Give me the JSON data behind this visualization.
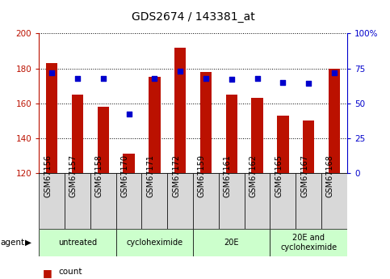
{
  "title": "GDS2674 / 143381_at",
  "samples": [
    "GSM67156",
    "GSM67157",
    "GSM67158",
    "GSM67170",
    "GSM67171",
    "GSM67172",
    "GSM67159",
    "GSM67161",
    "GSM67162",
    "GSM67165",
    "GSM67167",
    "GSM67168"
  ],
  "bar_values": [
    183,
    165,
    158,
    131,
    175,
    192,
    178,
    165,
    163,
    153,
    150,
    180
  ],
  "dot_values": [
    72,
    68,
    68,
    42,
    68,
    73,
    68,
    67,
    68,
    65,
    64,
    72
  ],
  "ylim": [
    120,
    200
  ],
  "y2lim": [
    0,
    100
  ],
  "yticks": [
    120,
    140,
    160,
    180,
    200
  ],
  "y2ticks": [
    0,
    25,
    50,
    75,
    100
  ],
  "bar_color": "#bb1100",
  "dot_color": "#0000cc",
  "bar_bottom": 120,
  "groups": [
    {
      "label": "untreated",
      "start": 0,
      "end": 3
    },
    {
      "label": "cycloheximide",
      "start": 3,
      "end": 6
    },
    {
      "label": "20E",
      "start": 6,
      "end": 9
    },
    {
      "label": "20E and\ncycloheximide",
      "start": 9,
      "end": 12
    }
  ],
  "group_color": "#ccffcc",
  "sample_bg_color": "#d8d8d8",
  "title_fontsize": 10,
  "tick_fontsize": 7.5,
  "label_fontsize": 7.5
}
